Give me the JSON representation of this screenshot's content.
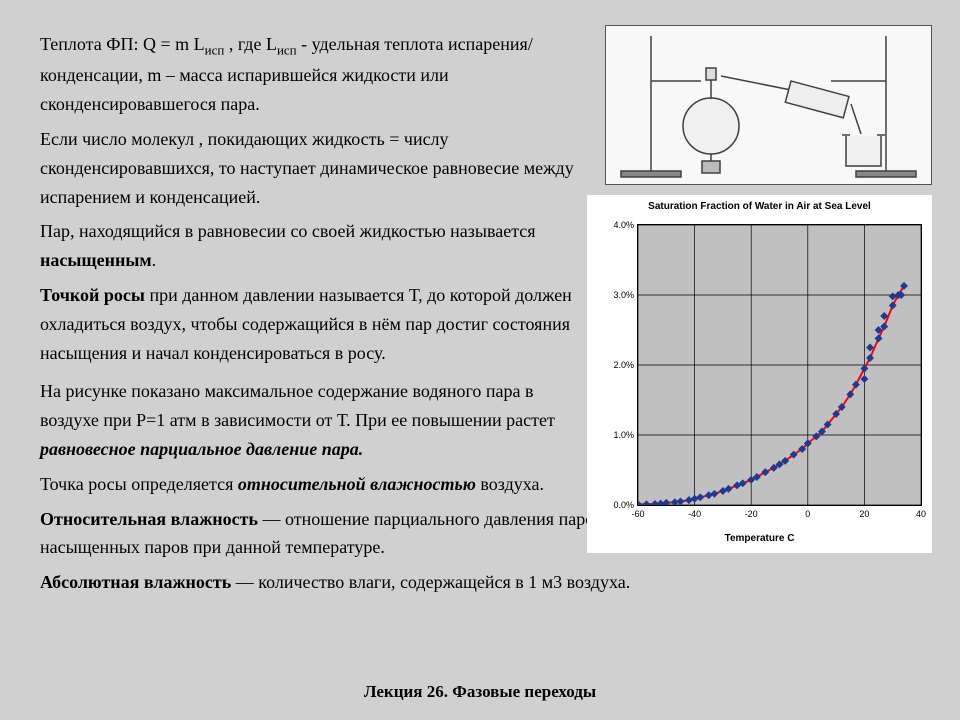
{
  "text": {
    "p1a": "Теплота ФП: Q = m L",
    "p1_sub": "исп",
    "p1b": " , где L",
    "p1c": " - удельная теплота испарения/конденсации, m – масса испарившейся жидкости  или сконденсировавшегося пара.",
    "p2": "Если число молекул , покидающих жидкость = числу сконденсировавшихся, то наступает динамическое равновесие между испарением и конденсацией.",
    "p3a": "Пар, находящийся в равновесии со своей жидкостью называется ",
    "p3b": "насыщенным",
    "p3c": ".",
    "p4a": "Точкой росы",
    "p4b": " при данном давлении называется Т, до которой должен охладиться воздух, чтобы содержащийся в нём пар достиг состояния насыщения и начал конденсироваться в росу.",
    "p5a": "На рисунке показано максимальное содержание водяного пара в воздухе при P=1 атм в зависимости от Т. При ее повышении растет ",
    "p5b": "равновесное парциальное давление пара.",
    "p6a": "Точка росы определяется ",
    "p6b": "относительной влажностью",
    "p6c": " воздуха.",
    "p7a": "Относительная влажность",
    "p7b": " — отношение парциального давления паров воды в газе к равновесному давлению насыщенных паров при данной температуре.",
    "p8a": "Абсолютная влажность",
    "p8b": " — количество влаги, содержащейся в 1 м3 воздуха.",
    "footer": "Лекция 26.  Фазовые переходы"
  },
  "chart": {
    "title": "Saturation Fraction of Water in Air at Sea Level",
    "ylabel": "Saturation Fraction of Water in Air at Sea Level",
    "xlabel": "Temperature C",
    "xlim": [
      -60,
      40
    ],
    "xtick_step": 20,
    "ylim": [
      0,
      0.04
    ],
    "ytick_step": 0.01,
    "yticks": [
      "0.0%",
      "1.0%",
      "2.0%",
      "3.0%",
      "4.0%"
    ],
    "xticks": [
      "-60",
      "-40",
      "-20",
      "0",
      "20",
      "40"
    ],
    "grid_color": "#000000",
    "bg_color": "#c0c0c0",
    "line_color": "#ff0000",
    "line_width": 2,
    "marker_color": "#1f3a93",
    "marker_size": 4,
    "points": [
      [
        -60,
        0.0001
      ],
      [
        -57,
        0.0001
      ],
      [
        -54,
        0.00015
      ],
      [
        -52,
        0.0002
      ],
      [
        -50,
        0.0003
      ],
      [
        -47,
        0.0004
      ],
      [
        -45,
        0.0005
      ],
      [
        -42,
        0.0007
      ],
      [
        -40,
        0.0009
      ],
      [
        -38,
        0.0011
      ],
      [
        -35,
        0.0014
      ],
      [
        -33,
        0.0016
      ],
      [
        -30,
        0.002
      ],
      [
        -28,
        0.0023
      ],
      [
        -25,
        0.0028
      ],
      [
        -23,
        0.0031
      ],
      [
        -20,
        0.0036
      ],
      [
        -18,
        0.004
      ],
      [
        -15,
        0.0047
      ],
      [
        -12,
        0.0053
      ],
      [
        -10,
        0.0058
      ],
      [
        -8,
        0.0063
      ],
      [
        -5,
        0.0072
      ],
      [
        -2,
        0.008
      ],
      [
        0,
        0.0088
      ],
      [
        3,
        0.0098
      ],
      [
        5,
        0.0105
      ],
      [
        7,
        0.0115
      ],
      [
        10,
        0.013
      ],
      [
        12,
        0.014
      ],
      [
        15,
        0.0158
      ],
      [
        17,
        0.0172
      ],
      [
        20,
        0.0195
      ],
      [
        22,
        0.021
      ],
      [
        25,
        0.0238
      ],
      [
        27,
        0.0255
      ],
      [
        30,
        0.0285
      ],
      [
        32,
        0.03
      ],
      [
        34,
        0.0313
      ]
    ],
    "extra_markers": [
      [
        20,
        0.018
      ],
      [
        22,
        0.0225
      ],
      [
        25,
        0.025
      ],
      [
        27,
        0.027
      ],
      [
        30,
        0.0298
      ],
      [
        33,
        0.03
      ]
    ]
  },
  "apparatus": {
    "stroke": "#404040"
  }
}
